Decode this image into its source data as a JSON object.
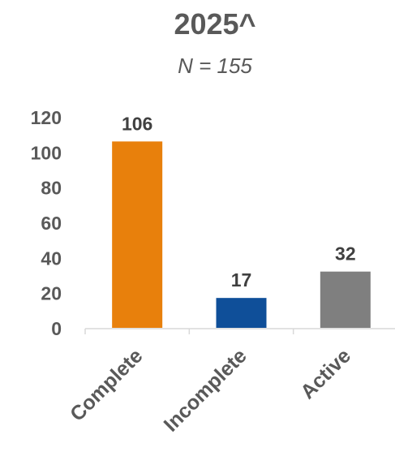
{
  "chart_data": {
    "type": "bar",
    "title": "2025^",
    "subtitle": "N = 155",
    "categories": [
      "Complete",
      "Incomplete",
      "Active"
    ],
    "values": [
      106,
      17,
      32
    ],
    "data_labels": [
      "106",
      "17",
      "32"
    ],
    "colors": [
      "#E8800C",
      "#0F4F99",
      "#7F7F7F"
    ],
    "ylim": [
      0,
      120
    ],
    "yticks": [
      0,
      20,
      40,
      60,
      80,
      100,
      120
    ],
    "ytick_labels": [
      "0",
      "20",
      "40",
      "60",
      "80",
      "100",
      "120"
    ],
    "xlabel": "",
    "ylabel": "",
    "grid": false,
    "legend": "none"
  }
}
